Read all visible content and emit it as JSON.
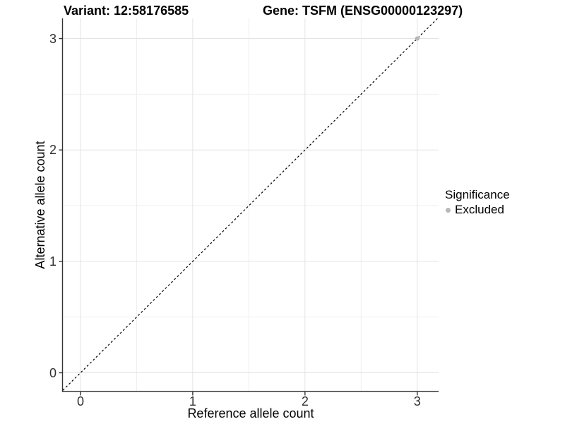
{
  "chart_data": {
    "type": "scatter",
    "titles": {
      "variant": "Variant: 12:58176585",
      "gene": "Gene: TSFM (ENSG00000123297)"
    },
    "xlabel": "Reference allele count",
    "ylabel": "Alternative allele count",
    "xlim": [
      -0.157,
      3.19
    ],
    "ylim": [
      -0.168,
      3.181
    ],
    "xticks": [
      0,
      1,
      2,
      3
    ],
    "yticks": [
      0,
      1,
      2,
      3
    ],
    "xminor": [
      0.5,
      1.5,
      2.5
    ],
    "yminor": [
      0.5,
      1.5,
      2.5
    ],
    "grid": true,
    "legend_position": "right",
    "reference_line": {
      "kind": "identity-diagonal",
      "style": "dashed",
      "color": "#000000"
    },
    "series": [
      {
        "name": "Excluded",
        "color": "#b8b8b8",
        "points": [
          {
            "x": 3,
            "y": 3
          }
        ]
      }
    ],
    "legend": {
      "title": "Significance",
      "items": [
        {
          "label": "Excluded",
          "color": "#b8b8b8"
        }
      ]
    },
    "colors": {
      "grid_major": "#e3e3e3",
      "grid_minor": "#efefef",
      "axis_line": "#333333",
      "tick_mark": "#333333",
      "point": "#b8b8b8"
    }
  }
}
